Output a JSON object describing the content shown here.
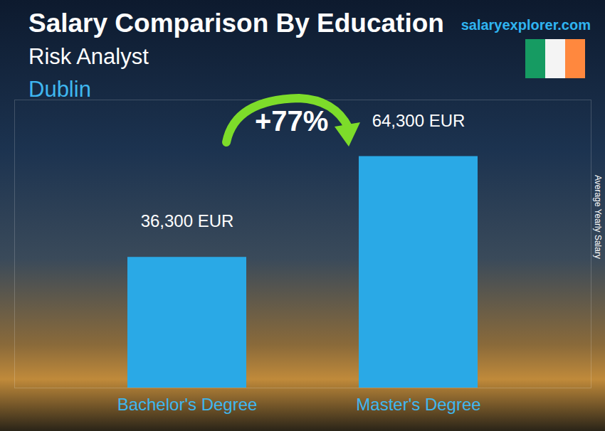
{
  "chart_data": {
    "type": "bar",
    "title": "Salary Comparison By Education",
    "subtitle": [
      "Risk Analyst",
      "Dublin"
    ],
    "source": "salaryexplorer.com",
    "y_label": "Average Yearly Salary",
    "categories": [
      "Bachelor's Degree",
      "Master's Degree"
    ],
    "values": [
      36300,
      64300
    ],
    "value_labels": [
      "36,300 EUR",
      "64,300 EUR"
    ],
    "data_labels": true,
    "color": "#2aa9e6",
    "ylim": [
      0,
      80000
    ],
    "yticks": [],
    "tick_labels": "x",
    "annotations": [
      {
        "text": "+77%"
      }
    ]
  }
}
